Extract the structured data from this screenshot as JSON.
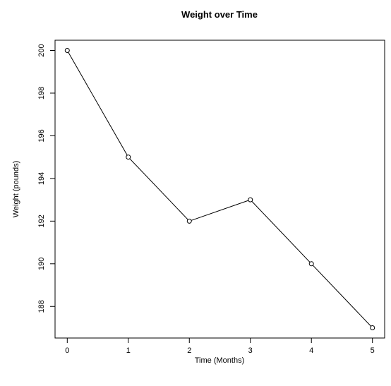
{
  "chart_data": {
    "type": "line",
    "title": "Weight over Time",
    "xlabel": "Time (Months)",
    "ylabel": "Weight (pounds)",
    "x": [
      0,
      1,
      2,
      3,
      4,
      5
    ],
    "y": [
      200,
      195,
      192,
      193,
      190,
      187
    ],
    "xlim": [
      -0.2,
      5.2
    ],
    "ylim": [
      186.52,
      200.48
    ],
    "xticks": [
      0,
      1,
      2,
      3,
      4,
      5
    ],
    "yticks": [
      188,
      190,
      192,
      194,
      196,
      198,
      200
    ],
    "xtick_labels": [
      "0",
      "1",
      "2",
      "3",
      "4",
      "5"
    ],
    "ytick_labels": [
      "188",
      "190",
      "192",
      "194",
      "196",
      "198",
      "200"
    ],
    "marker": "open-circle",
    "line_color": "#000000",
    "grid": false,
    "legend": "none"
  }
}
